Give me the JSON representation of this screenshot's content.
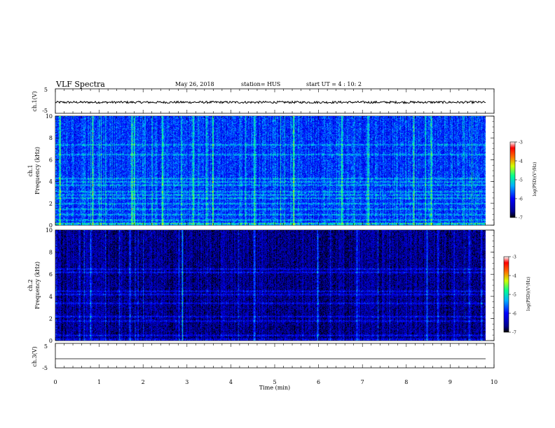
{
  "header": {
    "title": "VLF Spectra",
    "date": "May 26, 2018",
    "station": "station= HUS",
    "start_ut": "start  UT =   4 : 10: 2"
  },
  "chart_data": [
    {
      "type": "line",
      "panel": "ch1-waveform",
      "ylabel": "ch.1(V)",
      "ylim": [
        -5,
        5
      ],
      "y_ticks": [
        "5",
        "-5"
      ],
      "xlim": [
        0,
        10
      ],
      "series": [
        {
          "values_note": "continuous noise trace near -0.5 V",
          "level": -0.5
        }
      ]
    },
    {
      "type": "heatmap",
      "panel": "ch1-spectrogram",
      "ylabel_top": "ch.1",
      "ylabel": "Frequency (kHz)",
      "ylim": [
        0,
        10
      ],
      "y_ticks": [
        "0",
        "2",
        "4",
        "6",
        "8",
        "10"
      ],
      "xlim": [
        0,
        9.85
      ],
      "colorbar": {
        "label": "log(PSD)(V²/Hz)",
        "range": [
          -7,
          -3
        ],
        "ticks": [
          "-3",
          "-4",
          "-5",
          "-6",
          "-7"
        ]
      },
      "background_level": -5.8,
      "bands_khz": [
        0.2,
        0.5,
        1.0,
        1.5,
        2.0,
        2.5,
        2.8,
        3.1,
        3.7,
        4.0,
        4.3,
        6.5,
        7.4
      ],
      "bright_times_min": [
        0.1,
        0.85,
        1.75,
        1.8,
        2.45,
        3.15,
        3.6,
        4.55,
        5.45,
        6.55,
        7.15,
        8.2,
        8.6
      ]
    },
    {
      "type": "heatmap",
      "panel": "ch2-spectrogram",
      "ylabel_top": "ch.2",
      "ylabel": "Frequency (kHz)",
      "ylim": [
        0,
        10
      ],
      "y_ticks": [
        "0",
        "2",
        "4",
        "6",
        "8",
        "10"
      ],
      "xlim": [
        0,
        9.85
      ],
      "colorbar": {
        "label": "log(PSD)(V²/Hz)",
        "range": [
          -7,
          -3
        ],
        "ticks": [
          "-3",
          "-4",
          "-5",
          "-6",
          "-7"
        ]
      },
      "background_level": -6.6,
      "bands_khz": [
        0.5,
        1.8,
        2.2,
        3.4,
        4.2,
        4.5,
        6.2,
        6.5
      ],
      "bright_times_min": [
        0.8,
        1.7,
        2.9,
        4.55,
        6.0,
        6.9,
        8.5,
        8.75,
        9.75
      ]
    },
    {
      "type": "line",
      "panel": "ch3-waveform",
      "ylabel": "ch.3(V)",
      "ylim": [
        -5,
        5
      ],
      "y_ticks": [
        "5",
        "-5"
      ],
      "xlim": [
        0,
        10
      ],
      "series": [
        {
          "values_note": "flat trace",
          "level": -1
        }
      ]
    }
  ],
  "x_axis": {
    "label": "Time  (min)",
    "ticks": [
      "0",
      "1",
      "2",
      "3",
      "4",
      "5",
      "6",
      "7",
      "8",
      "9",
      "10"
    ],
    "range": [
      0,
      10
    ]
  }
}
